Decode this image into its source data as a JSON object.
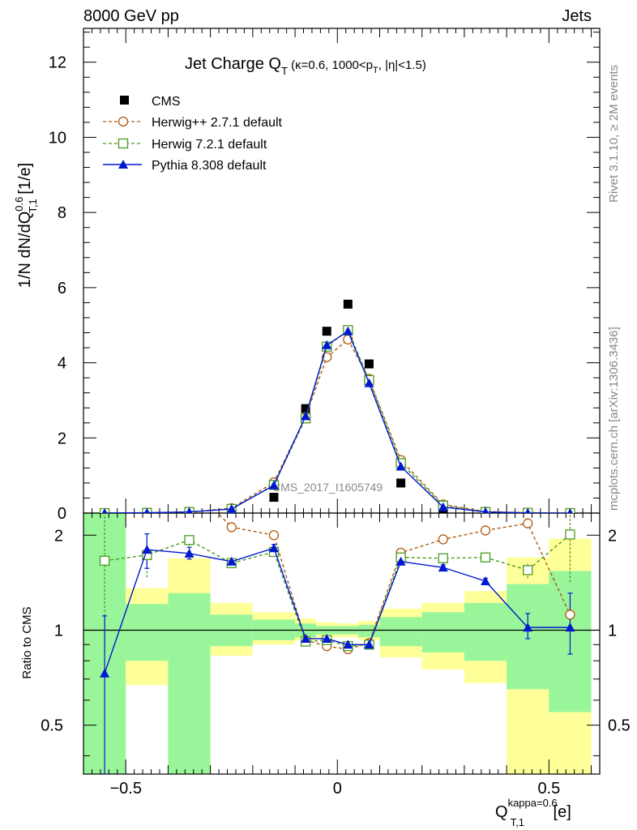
{
  "header": {
    "left": "8000 GeV pp",
    "right": "Jets",
    "side_top": "Rivet 3.1.10, ≥ 2M events",
    "side_bottom": "mcplots.cern.ch [arXiv:1306.3436]"
  },
  "chart_data": {
    "type": "scatter",
    "title_main": "Jet Charge Q",
    "title_sub": "T",
    "title_rest": " (κ=0.6, 1000<p",
    "title_sub2": "T",
    "title_end": ", |η|<1.5)",
    "watermark": "CMS_2017_I1605749",
    "ylabel_top": "1/N dN/dQ",
    "ylabel_sup": "0.6",
    "ylabel_sub": "T,1",
    "ylabel_unit": " [1/e]",
    "ylabel_ratio": "Ratio to CMS",
    "xlabel_main": "Q",
    "xlabel_sup": "kappa=0.6",
    "xlabel_sub": "T,1",
    "xlabel_unit": " [e]",
    "xlim": [
      -0.6,
      0.62
    ],
    "ylim": [
      0,
      12.9
    ],
    "ratio_ylim": [
      0.35,
      2.35
    ],
    "y_ticks": [
      "0",
      "2",
      "4",
      "6",
      "8",
      "10",
      "12"
    ],
    "ratio_ticks": [
      "0.5",
      "1",
      "2"
    ],
    "x_ticks": [
      "−0.5",
      "0",
      "0.5"
    ],
    "legend": [
      {
        "label": "CMS",
        "marker": "square-filled",
        "color": "#000000"
      },
      {
        "label": "Herwig++ 2.7.1 default",
        "marker": "circle-open",
        "color": "#b05a10"
      },
      {
        "label": "Herwig 7.2.1 default",
        "marker": "square-open",
        "color": "#4a9a1e"
      },
      {
        "label": "Pythia 8.308 default",
        "marker": "triangle-filled",
        "color": "#0018d0"
      }
    ],
    "bins": [
      [
        -0.6,
        -0.5
      ],
      [
        -0.5,
        -0.4
      ],
      [
        -0.4,
        -0.3
      ],
      [
        -0.3,
        -0.2
      ],
      [
        -0.2,
        -0.1
      ],
      [
        -0.1,
        -0.05
      ],
      [
        -0.05,
        0
      ],
      [
        0,
        0.05
      ],
      [
        0.05,
        0.1
      ],
      [
        0.1,
        0.2
      ],
      [
        0.2,
        0.3
      ],
      [
        0.3,
        0.4
      ],
      [
        0.4,
        0.5
      ],
      [
        0.5,
        0.6
      ]
    ],
    "x": [
      -0.55,
      -0.45,
      -0.35,
      -0.25,
      -0.15,
      -0.075,
      -0.025,
      0.025,
      0.075,
      0.15,
      0.25,
      0.35,
      0.45,
      0.55
    ],
    "series": [
      {
        "name": "CMS",
        "values": [
          0.0,
          0.005,
          0.02,
          0.07,
          0.42,
          2.78,
          4.84,
          5.56,
          3.97,
          0.8,
          0.12,
          0.02,
          0.005,
          0.0
        ]
      },
      {
        "name": "Herwig++ 2.7.1 default",
        "values": [
          0.0,
          0.008,
          0.03,
          0.13,
          0.82,
          2.56,
          4.15,
          4.62,
          3.57,
          1.41,
          0.23,
          0.04,
          0.01,
          0.0
        ]
      },
      {
        "name": "Herwig 7.2.1 default",
        "values": [
          0.0,
          0.008,
          0.03,
          0.11,
          0.75,
          2.52,
          4.43,
          4.87,
          3.54,
          1.33,
          0.2,
          0.03,
          0.007,
          0.0
        ]
      },
      {
        "name": "Pythia 8.308 default",
        "values": [
          0.0,
          0.008,
          0.03,
          0.11,
          0.74,
          2.58,
          4.47,
          4.84,
          3.46,
          1.24,
          0.16,
          0.03,
          0.005,
          0.0
        ]
      }
    ],
    "ratios": [
      {
        "name": "Herwig++ 2.7.1 default",
        "values": [
          null,
          null,
          null,
          2.12,
          2.0,
          0.93,
          0.89,
          0.87,
          0.91,
          1.76,
          1.94,
          2.07,
          2.18,
          1.12
        ]
      },
      {
        "name": "Herwig 7.2.1 default",
        "values": [
          1.66,
          1.73,
          1.93,
          1.63,
          1.77,
          0.92,
          0.93,
          0.89,
          0.9,
          1.7,
          1.69,
          1.7,
          1.55,
          2.01
        ]
      },
      {
        "name": "Pythia 8.308 default",
        "values": [
          0.73,
          1.8,
          1.75,
          1.65,
          1.82,
          0.94,
          0.94,
          0.9,
          0.9,
          1.65,
          1.58,
          1.43,
          1.02,
          1.02
        ]
      }
    ],
    "ratio_errors": [
      {
        "name": "Herwig 7.2.1 default",
        "low": [
          0.85,
          1.47,
          1.85,
          1.6,
          1.73,
          0.91,
          0.92,
          0.88,
          0.89,
          1.67,
          1.66,
          1.67,
          1.46,
          1.42
        ],
        "high": [
          2.35,
          1.98,
          2.01,
          1.66,
          1.81,
          0.93,
          0.94,
          0.9,
          0.91,
          1.73,
          1.72,
          1.73,
          1.64,
          2.35
        ]
      },
      {
        "name": "Pythia 8.308 default",
        "low": [
          0.35,
          1.57,
          1.68,
          1.62,
          1.77,
          0.93,
          0.93,
          0.89,
          0.89,
          1.62,
          1.55,
          1.4,
          0.94,
          0.84
        ]
      },
      {
        "name": "Pythia 8.308 default high",
        "high": [
          1.11,
          2.02,
          1.83,
          1.68,
          1.87,
          0.95,
          0.95,
          0.91,
          0.91,
          1.68,
          1.61,
          1.46,
          1.13,
          1.31
        ]
      }
    ],
    "bands": {
      "yellow_low": [
        0.35,
        0.67,
        0.35,
        0.83,
        0.9,
        0.93,
        0.95,
        0.95,
        0.93,
        0.82,
        0.75,
        0.68,
        0.35,
        0.35
      ],
      "yellow_high": [
        2.35,
        1.36,
        1.69,
        1.22,
        1.14,
        1.09,
        1.06,
        1.05,
        1.07,
        1.17,
        1.22,
        1.33,
        1.7,
        1.95
      ],
      "green_low": [
        0.35,
        0.8,
        0.35,
        0.89,
        0.93,
        0.95,
        0.97,
        0.97,
        0.95,
        0.89,
        0.85,
        0.8,
        0.65,
        0.55
      ],
      "green_high": [
        2.35,
        1.21,
        1.31,
        1.12,
        1.08,
        1.05,
        1.03,
        1.03,
        1.04,
        1.1,
        1.14,
        1.22,
        1.4,
        1.54
      ]
    }
  }
}
